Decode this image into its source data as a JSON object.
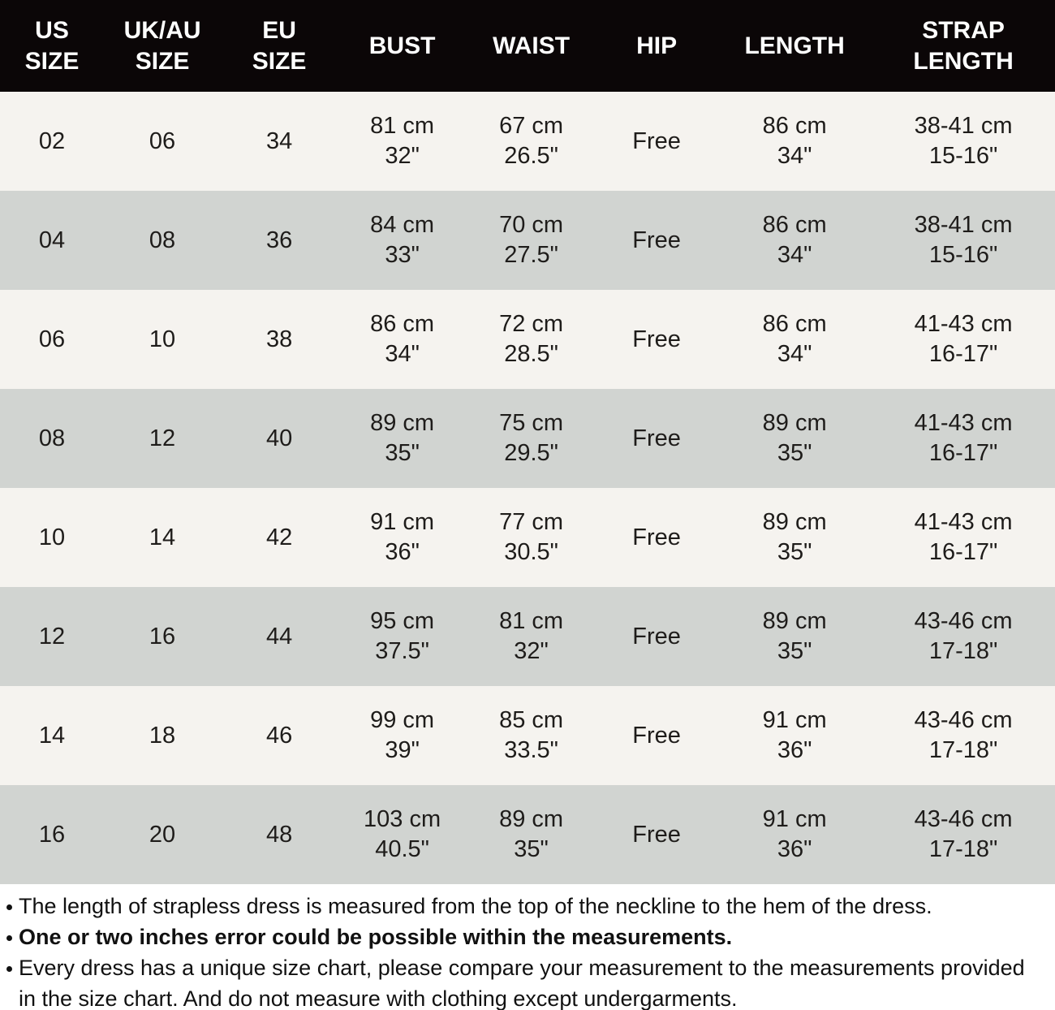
{
  "theme": {
    "header_bg": "#0b0607",
    "header_text": "#ffffff",
    "row_light": "#f5f3ef",
    "row_dark": "#d1d4d1",
    "text": "#1e1c1a"
  },
  "table": {
    "columns": [
      "US SIZE",
      "UK/AU SIZE",
      "EU SIZE",
      "BUST",
      "WAIST",
      "HIP",
      "LENGTH",
      "STRAP LENGTH"
    ],
    "rows": [
      [
        [
          "02"
        ],
        [
          "06"
        ],
        [
          "34"
        ],
        [
          "81 cm",
          "32\""
        ],
        [
          "67 cm",
          "26.5\""
        ],
        [
          "Free"
        ],
        [
          "86 cm",
          "34\""
        ],
        [
          "38-41 cm",
          "15-16\""
        ]
      ],
      [
        [
          "04"
        ],
        [
          "08"
        ],
        [
          "36"
        ],
        [
          "84 cm",
          "33\""
        ],
        [
          "70 cm",
          "27.5\""
        ],
        [
          "Free"
        ],
        [
          "86 cm",
          "34\""
        ],
        [
          "38-41 cm",
          "15-16\""
        ]
      ],
      [
        [
          "06"
        ],
        [
          "10"
        ],
        [
          "38"
        ],
        [
          "86 cm",
          "34\""
        ],
        [
          "72 cm",
          "28.5\""
        ],
        [
          "Free"
        ],
        [
          "86 cm",
          "34\""
        ],
        [
          "41-43 cm",
          "16-17\""
        ]
      ],
      [
        [
          "08"
        ],
        [
          "12"
        ],
        [
          "40"
        ],
        [
          "89 cm",
          "35\""
        ],
        [
          "75 cm",
          "29.5\""
        ],
        [
          "Free"
        ],
        [
          "89 cm",
          "35\""
        ],
        [
          "41-43 cm",
          "16-17\""
        ]
      ],
      [
        [
          "10"
        ],
        [
          "14"
        ],
        [
          "42"
        ],
        [
          "91 cm",
          "36\""
        ],
        [
          "77 cm",
          "30.5\""
        ],
        [
          "Free"
        ],
        [
          "89 cm",
          "35\""
        ],
        [
          "41-43 cm",
          "16-17\""
        ]
      ],
      [
        [
          "12"
        ],
        [
          "16"
        ],
        [
          "44"
        ],
        [
          "95 cm",
          "37.5\""
        ],
        [
          "81 cm",
          "32\""
        ],
        [
          "Free"
        ],
        [
          "89 cm",
          "35\""
        ],
        [
          "43-46 cm",
          "17-18\""
        ]
      ],
      [
        [
          "14"
        ],
        [
          "18"
        ],
        [
          "46"
        ],
        [
          "99 cm",
          "39\""
        ],
        [
          "85 cm",
          "33.5\""
        ],
        [
          "Free"
        ],
        [
          "91 cm",
          "36\""
        ],
        [
          "43-46 cm",
          "17-18\""
        ]
      ],
      [
        [
          "16"
        ],
        [
          "20"
        ],
        [
          "48"
        ],
        [
          "103 cm",
          "40.5\""
        ],
        [
          "89 cm",
          "35\""
        ],
        [
          "Free"
        ],
        [
          "91 cm",
          "36\""
        ],
        [
          "43-46 cm",
          "17-18\""
        ]
      ]
    ]
  },
  "notes": [
    {
      "text": "The length of strapless dress is measured from the top of the neckline to the hem of the dress.",
      "bold": false
    },
    {
      "text": "One or two inches error could be possible within the measurements.",
      "bold": true
    },
    {
      "text": "Every dress has a unique size chart, please compare your measurement to the measurements provided in the size chart. And do not measure with clothing except undergarments.",
      "bold": false
    }
  ]
}
